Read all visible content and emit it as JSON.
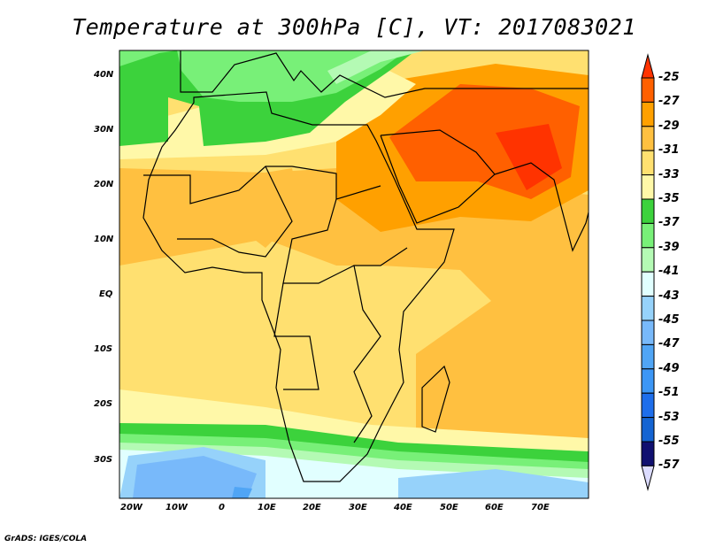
{
  "title": "Temperature at 300hPa [C], VT: 2017083021",
  "credit": "GrADS: IGES/COLA",
  "map": {
    "variable": "Temperature at 300hPa",
    "units": "C",
    "valid_time": "2017083021",
    "lat_labels": [
      "40N",
      "30N",
      "20N",
      "10N",
      "EQ",
      "10S",
      "20S",
      "30S"
    ],
    "lon_labels": [
      "20W",
      "10W",
      "0",
      "10E",
      "20E",
      "30E",
      "40E",
      "50E",
      "60E",
      "70E"
    ]
  },
  "colorbar": {
    "labels": [
      "-25",
      "-27",
      "-29",
      "-31",
      "-33",
      "-35",
      "-37",
      "-39",
      "-41",
      "-43",
      "-45",
      "-47",
      "-49",
      "-51",
      "-53",
      "-55",
      "-57"
    ],
    "top_arrow_color": "#ff3300",
    "bottom_arrow_color": "#dcdcff",
    "colors": [
      "#ff6000",
      "#ffa000",
      "#ffc040",
      "#ffe070",
      "#fff8a8",
      "#3cd23c",
      "#78f078",
      "#b4fab4",
      "#e1ffff",
      "#96d2fa",
      "#78b9fa",
      "#50a5f5",
      "#3c96f5",
      "#1e6eeb",
      "#1464d2",
      "#101070"
    ]
  }
}
